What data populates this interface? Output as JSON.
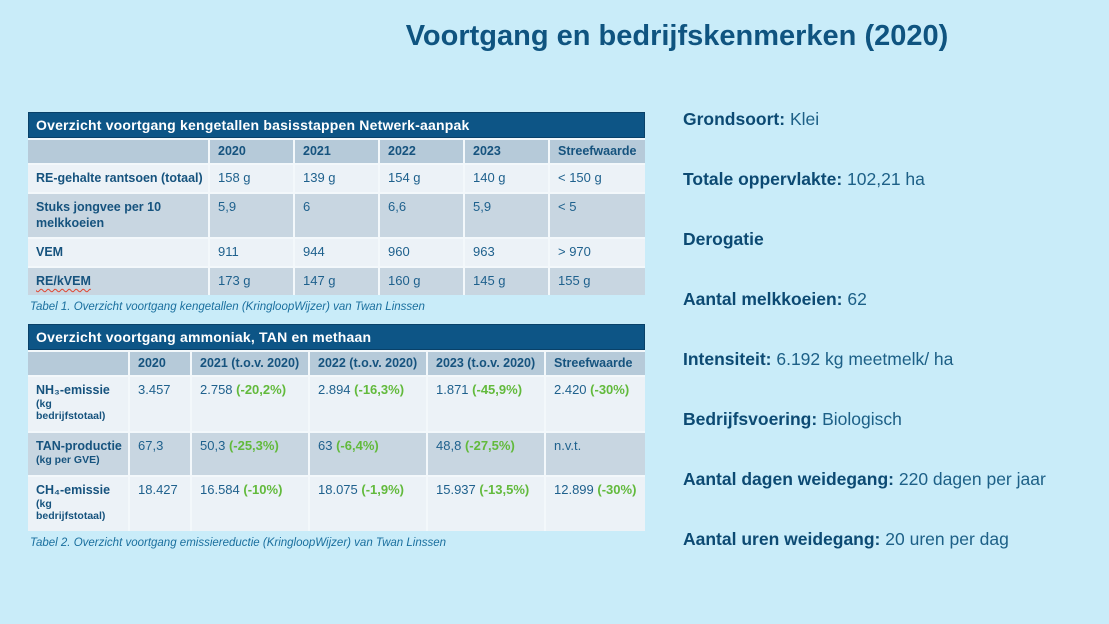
{
  "page": {
    "title": "Voortgang en bedrijfskenmerken (2020)"
  },
  "colors": {
    "page_bg": "#c9ecf9",
    "title_text": "#0f5480",
    "table_titlebar_bg": "#0d5586",
    "table_titlebar_text": "#ffffff",
    "column_header_bg": "#b6cad9",
    "row_light_bg": "#ecf2f7",
    "row_medium_bg": "#c8d6e1",
    "table_text": "#1f618d",
    "row_label_text": "#16537e",
    "delta_green": "#62ba3c",
    "caption_text": "#1a6f9e",
    "facts_label_text": "#0c4a73",
    "facts_value_text": "#1d6087",
    "spellcheck_red": "#e0452f"
  },
  "table1": {
    "title": "Overzicht voortgang kengetallen basisstappen Netwerk-aanpak",
    "columns": [
      "",
      "2020",
      "2021",
      "2022",
      "2023",
      "Streefwaarde"
    ],
    "rows": [
      {
        "label": "RE-gehalte rantsoen (totaal)",
        "values": [
          "158 g",
          "139 g",
          "154 g",
          "140 g",
          "< 150 g"
        ]
      },
      {
        "label": "Stuks jongvee per 10 melkkoeien",
        "values": [
          "5,9",
          "6",
          "6,6",
          "5,9",
          "< 5"
        ]
      },
      {
        "label": "VEM",
        "values": [
          "911",
          "944",
          "960",
          "963",
          "> 970"
        ]
      },
      {
        "label": "RE/kVEM",
        "spellcheck_underline": true,
        "values": [
          "173 g",
          "147 g",
          "160 g",
          "145 g",
          "155 g"
        ]
      }
    ],
    "caption": "Tabel 1. Overzicht voortgang kengetallen (KringloopWijzer) van Twan Linssen"
  },
  "table2": {
    "title": "Overzicht voortgang ammoniak, TAN en methaan",
    "columns": [
      "",
      "2020",
      "2021 (t.o.v. 2020)",
      "2022 (t.o.v. 2020)",
      "2023 (t.o.v. 2020)",
      "Streefwaarde"
    ],
    "rows": [
      {
        "label": "NH₃-emissie",
        "sublabel": "(kg bedrijfstotaal)",
        "values": [
          "3.457",
          [
            "2.758",
            "(-20,2%)"
          ],
          [
            "2.894",
            "(-16,3%)"
          ],
          [
            "1.871",
            "(-45,9%)"
          ],
          [
            "2.420",
            "(-30%)"
          ]
        ]
      },
      {
        "label": "TAN-productie",
        "sublabel": "(kg per GVE)",
        "values": [
          "67,3",
          [
            "50,3",
            "(-25,3%)"
          ],
          [
            "63",
            "(-6,4%)"
          ],
          [
            "48,8",
            "(-27,5%)"
          ],
          "n.v.t."
        ]
      },
      {
        "label": "CH₄-emissie",
        "sublabel": "(kg bedrijfstotaal)",
        "values": [
          "18.427",
          [
            "16.584",
            "(-10%)"
          ],
          [
            "18.075",
            "(-1,9%)"
          ],
          [
            "15.937",
            "(-13,5%)"
          ],
          [
            "12.899",
            "(-30%)"
          ]
        ]
      }
    ],
    "caption": "Tabel 2. Overzicht voortgang emissiereductie (KringloopWijzer) van Twan Linssen"
  },
  "facts": [
    {
      "label": "Grondsoort:",
      "value": "Klei"
    },
    {
      "label": "Totale oppervlakte:",
      "value": "102,21 ha"
    },
    {
      "label": "Derogatie",
      "value": ""
    },
    {
      "label": "Aantal melkkoeien:",
      "value": "62"
    },
    {
      "label": "Intensiteit:",
      "value": "6.192 kg meetmelk/ ha"
    },
    {
      "label": "Bedrijfsvoering:",
      "value": "Biologisch"
    },
    {
      "label": "Aantal dagen weidegang:",
      "value": "220 dagen per jaar"
    },
    {
      "label": "Aantal uren weidegang:",
      "value": "20 uren per dag"
    }
  ]
}
